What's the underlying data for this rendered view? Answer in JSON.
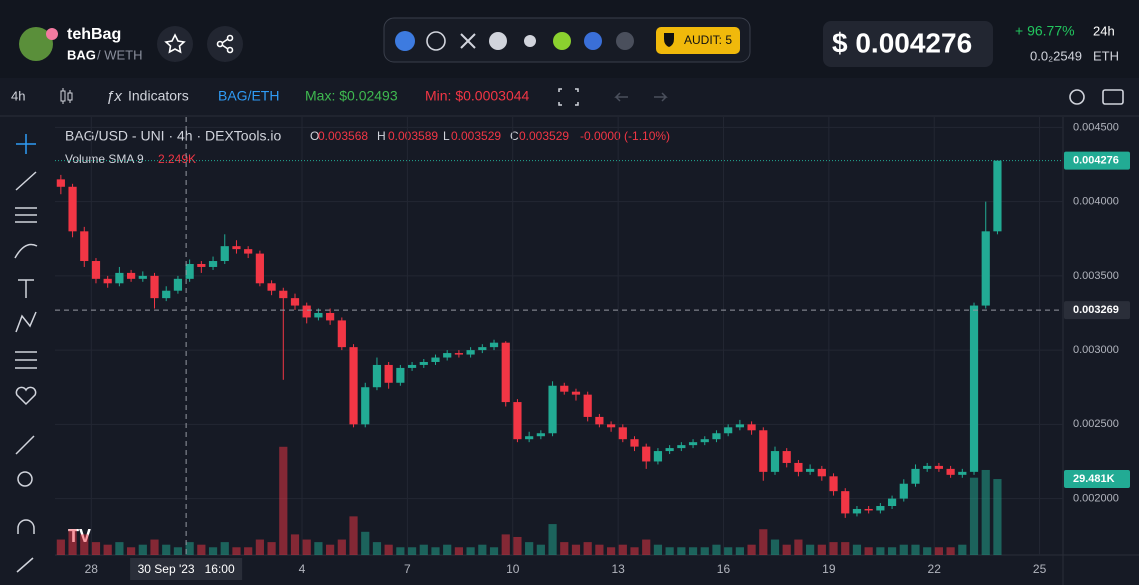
{
  "header": {
    "token_name": "tehBag",
    "pair_base": "BAG",
    "pair_quote": "/ WETH",
    "audit": "AUDIT: 5",
    "price": "$ 0.004276",
    "change": "+ 96.77%",
    "period": "24h",
    "eth_price": "0.0₂2549",
    "eth_label": "ETH"
  },
  "toolbar": {
    "timeframe": "4h",
    "indicators": "Indicators",
    "pair": "BAG/ETH",
    "max": "Max: $0.02493",
    "min": "Min: $0.0003044"
  },
  "chart_data": {
    "type": "candlestick",
    "title": "BAG/USD - UNI · 4h · DEXTools.io",
    "ohlc": [
      {
        "label": "O",
        "value": "0.003568"
      },
      {
        "label": "H",
        "value": "0.003589"
      },
      {
        "label": "L",
        "value": "0.003529"
      },
      {
        "label": "C",
        "value": "0.003529"
      }
    ],
    "change_label": "-0.0000 (-1.10%)",
    "volume_title": "Volume SMA 9",
    "volume_sma": "2.249K",
    "up_color": "#22ab94",
    "down_color": "#f23645",
    "candles": [
      [
        0.00415,
        0.00418,
        0.00405,
        0.0041
      ],
      [
        0.0041,
        0.00412,
        0.00376,
        0.0038
      ],
      [
        0.0038,
        0.00383,
        0.00356,
        0.0036
      ],
      [
        0.0036,
        0.00362,
        0.00345,
        0.00348
      ],
      [
        0.00348,
        0.0035,
        0.00342,
        0.00345
      ],
      [
        0.00345,
        0.00356,
        0.00343,
        0.00352
      ],
      [
        0.00352,
        0.00354,
        0.00346,
        0.00348
      ],
      [
        0.00348,
        0.00353,
        0.00346,
        0.0035
      ],
      [
        0.0035,
        0.00352,
        0.00328,
        0.00335
      ],
      [
        0.00335,
        0.00343,
        0.00333,
        0.0034
      ],
      [
        0.0034,
        0.0035,
        0.00338,
        0.00348
      ],
      [
        0.00348,
        0.00361,
        0.00346,
        0.00358
      ],
      [
        0.00358,
        0.0036,
        0.00352,
        0.00356
      ],
      [
        0.00356,
        0.00363,
        0.00354,
        0.0036
      ],
      [
        0.0036,
        0.00378,
        0.00358,
        0.0037
      ],
      [
        0.0037,
        0.00374,
        0.00365,
        0.00368
      ],
      [
        0.00368,
        0.0037,
        0.00362,
        0.00365
      ],
      [
        0.00365,
        0.00367,
        0.00343,
        0.00345
      ],
      [
        0.00345,
        0.00347,
        0.00337,
        0.0034
      ],
      [
        0.0034,
        0.00342,
        0.0028,
        0.00335
      ],
      [
        0.00335,
        0.00338,
        0.00327,
        0.0033
      ],
      [
        0.0033,
        0.00332,
        0.00318,
        0.00322
      ],
      [
        0.00322,
        0.00328,
        0.0032,
        0.00325
      ],
      [
        0.00325,
        0.00328,
        0.00317,
        0.0032
      ],
      [
        0.0032,
        0.00322,
        0.003,
        0.00302
      ],
      [
        0.00302,
        0.00304,
        0.00248,
        0.0025
      ],
      [
        0.0025,
        0.00278,
        0.00248,
        0.00275
      ],
      [
        0.00275,
        0.00295,
        0.00273,
        0.0029
      ],
      [
        0.0029,
        0.00292,
        0.00274,
        0.00278
      ],
      [
        0.00278,
        0.0029,
        0.00276,
        0.00288
      ],
      [
        0.00288,
        0.00292,
        0.00286,
        0.0029
      ],
      [
        0.0029,
        0.00294,
        0.00288,
        0.00292
      ],
      [
        0.00292,
        0.00297,
        0.0029,
        0.00295
      ],
      [
        0.00295,
        0.003,
        0.00293,
        0.00298
      ],
      [
        0.00298,
        0.003,
        0.00295,
        0.00297
      ],
      [
        0.00297,
        0.00302,
        0.00295,
        0.003
      ],
      [
        0.003,
        0.00304,
        0.00298,
        0.00302
      ],
      [
        0.00302,
        0.00307,
        0.003,
        0.00305
      ],
      [
        0.00305,
        0.00306,
        0.00262,
        0.00265
      ],
      [
        0.00265,
        0.00267,
        0.00238,
        0.0024
      ],
      [
        0.0024,
        0.00245,
        0.00238,
        0.00242
      ],
      [
        0.00242,
        0.00246,
        0.0024,
        0.00244
      ],
      [
        0.00244,
        0.00279,
        0.00242,
        0.00276
      ],
      [
        0.00276,
        0.00278,
        0.0027,
        0.00272
      ],
      [
        0.00272,
        0.00274,
        0.00266,
        0.0027
      ],
      [
        0.0027,
        0.00272,
        0.00252,
        0.00255
      ],
      [
        0.00255,
        0.00257,
        0.00248,
        0.0025
      ],
      [
        0.0025,
        0.00252,
        0.00245,
        0.00248
      ],
      [
        0.00248,
        0.0025,
        0.00238,
        0.0024
      ],
      [
        0.0024,
        0.00242,
        0.00232,
        0.00235
      ],
      [
        0.00235,
        0.00237,
        0.0022,
        0.00225
      ],
      [
        0.00225,
        0.00234,
        0.00223,
        0.00232
      ],
      [
        0.00232,
        0.00236,
        0.0023,
        0.00234
      ],
      [
        0.00234,
        0.00238,
        0.00232,
        0.00236
      ],
      [
        0.00236,
        0.0024,
        0.00234,
        0.00238
      ],
      [
        0.00238,
        0.00242,
        0.00236,
        0.0024
      ],
      [
        0.0024,
        0.00246,
        0.00238,
        0.00244
      ],
      [
        0.00244,
        0.0025,
        0.00242,
        0.00248
      ],
      [
        0.00248,
        0.00253,
        0.00246,
        0.0025
      ],
      [
        0.0025,
        0.00252,
        0.00243,
        0.00246
      ],
      [
        0.00246,
        0.00248,
        0.00212,
        0.00218
      ],
      [
        0.00218,
        0.00235,
        0.00216,
        0.00232
      ],
      [
        0.00232,
        0.00234,
        0.00221,
        0.00224
      ],
      [
        0.00224,
        0.00226,
        0.00215,
        0.00218
      ],
      [
        0.00218,
        0.00223,
        0.00216,
        0.0022
      ],
      [
        0.0022,
        0.00222,
        0.00212,
        0.00215
      ],
      [
        0.00215,
        0.00217,
        0.00202,
        0.00205
      ],
      [
        0.00205,
        0.00207,
        0.00187,
        0.0019
      ],
      [
        0.0019,
        0.00195,
        0.00188,
        0.00193
      ],
      [
        0.00193,
        0.00195,
        0.0019,
        0.00192
      ],
      [
        0.00192,
        0.00197,
        0.0019,
        0.00195
      ],
      [
        0.00195,
        0.00202,
        0.00193,
        0.002
      ],
      [
        0.002,
        0.00213,
        0.00198,
        0.0021
      ],
      [
        0.0021,
        0.00223,
        0.00208,
        0.0022
      ],
      [
        0.0022,
        0.00224,
        0.00218,
        0.00222
      ],
      [
        0.00222,
        0.00224,
        0.00218,
        0.0022
      ],
      [
        0.0022,
        0.00222,
        0.00214,
        0.00216
      ],
      [
        0.00216,
        0.0022,
        0.00214,
        0.00218
      ],
      [
        0.00218,
        0.00332,
        0.00216,
        0.0033
      ],
      [
        0.0033,
        0.004,
        0.00328,
        0.0038
      ],
      [
        0.0038,
        0.004276,
        0.00378,
        0.004276
      ]
    ],
    "volumes": [
      6,
      10,
      8,
      5,
      4,
      5,
      3,
      4,
      6,
      4,
      3,
      5,
      4,
      3,
      5,
      3,
      3,
      6,
      5,
      42,
      8,
      6,
      5,
      4,
      6,
      15,
      9,
      5,
      4,
      3,
      3,
      4,
      3,
      4,
      3,
      3,
      4,
      3,
      8,
      7,
      5,
      4,
      12,
      5,
      4,
      5,
      4,
      3,
      4,
      3,
      6,
      4,
      3,
      3,
      3,
      3,
      4,
      3,
      3,
      4,
      10,
      6,
      4,
      6,
      4,
      4,
      5,
      5,
      4,
      3,
      3,
      3,
      4,
      4,
      3,
      3,
      3,
      4,
      30,
      33,
      29.481
    ],
    "ylim": [
      0.00162,
      0.00457
    ],
    "yticks": [
      {
        "value": 0.0045,
        "label": "0.004500"
      },
      {
        "value": 0.004,
        "label": "0.004000"
      },
      {
        "value": 0.0035,
        "label": "0.003500"
      },
      {
        "value": 0.003,
        "label": "0.003000"
      },
      {
        "value": 0.0025,
        "label": "0.002500"
      },
      {
        "value": 0.002,
        "label": "0.002000"
      }
    ],
    "xlim": [
      0,
      86.1
    ],
    "xticks": [
      {
        "value": 3.1,
        "label": "28"
      },
      {
        "value": 21.1,
        "label": "4"
      },
      {
        "value": 30.1,
        "label": "7"
      },
      {
        "value": 39.1,
        "label": "10"
      },
      {
        "value": 48.1,
        "label": "13"
      },
      {
        "value": 57.1,
        "label": "16"
      },
      {
        "value": 66.1,
        "label": "19"
      },
      {
        "value": 75.1,
        "label": "22"
      },
      {
        "value": 84.1,
        "label": "25"
      }
    ],
    "vlim": [
      0,
      170
    ],
    "current_price": {
      "value": 0.004276,
      "label": "0.004276"
    },
    "crosshair": {
      "x": {
        "value": 11.2,
        "label": "30 Sep '23   16:00"
      },
      "y": {
        "value": 0.003269,
        "label": "0.003269"
      }
    },
    "volume_tag": {
      "value": 29.481,
      "label": "29.481K"
    }
  }
}
